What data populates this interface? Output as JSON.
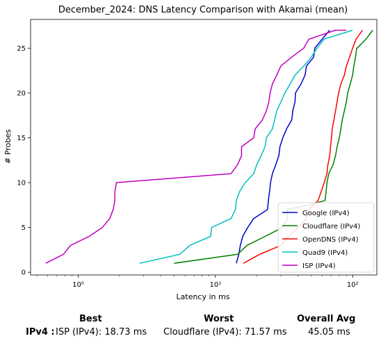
{
  "chart_data": {
    "type": "line",
    "title": "December_2024: DNS Latency Comparison with Akamai (mean)",
    "xlabel": "Latency in ms",
    "ylabel": "# Probes",
    "xscale": "log",
    "xlim": [
      0.45,
      150
    ],
    "ylim": [
      -0.3,
      28.2
    ],
    "xticks": [
      1,
      10,
      100
    ],
    "xtick_labels": [
      "10⁰",
      "10¹",
      "10²"
    ],
    "yticks": [
      0,
      5,
      10,
      15,
      20,
      25
    ],
    "legend_position": "lower-right",
    "series": [
      {
        "name": "Google (IPv4)",
        "color": "#0000cc",
        "points": [
          [
            14.2,
            1
          ],
          [
            14.8,
            2
          ],
          [
            15.2,
            3
          ],
          [
            15.8,
            4
          ],
          [
            17.2,
            5
          ],
          [
            19,
            6
          ],
          [
            24,
            7
          ],
          [
            24.3,
            8
          ],
          [
            24.8,
            9
          ],
          [
            25.2,
            10
          ],
          [
            26,
            11
          ],
          [
            27.5,
            12
          ],
          [
            29,
            13
          ],
          [
            29.5,
            14
          ],
          [
            31,
            15
          ],
          [
            33,
            16
          ],
          [
            36,
            17
          ],
          [
            36.6,
            18
          ],
          [
            38,
            19
          ],
          [
            38.3,
            20
          ],
          [
            42,
            21
          ],
          [
            45,
            22
          ],
          [
            46,
            23
          ],
          [
            52,
            24
          ],
          [
            53,
            25
          ],
          [
            60,
            26
          ],
          [
            68,
            27
          ]
        ]
      },
      {
        "name": "Cloudflare (IPv4)",
        "color": "#008000",
        "points": [
          [
            5,
            1
          ],
          [
            14.5,
            2
          ],
          [
            17,
            3
          ],
          [
            23,
            4
          ],
          [
            31,
            5
          ],
          [
            33.5,
            6
          ],
          [
            33.5,
            7
          ],
          [
            48,
            7.5
          ],
          [
            63,
            8
          ],
          [
            64,
            9
          ],
          [
            65,
            10
          ],
          [
            67,
            11
          ],
          [
            72,
            12
          ],
          [
            75,
            13
          ],
          [
            77,
            14
          ],
          [
            80,
            15
          ],
          [
            82,
            16
          ],
          [
            84,
            17
          ],
          [
            87,
            18
          ],
          [
            90,
            19
          ],
          [
            92,
            20
          ],
          [
            96,
            21
          ],
          [
            100,
            22
          ],
          [
            102,
            23
          ],
          [
            105,
            24
          ],
          [
            107,
            25
          ],
          [
            108,
            25
          ],
          [
            125,
            26
          ],
          [
            140,
            27
          ]
        ]
      },
      {
        "name": "OpenDNS (IPv4)",
        "color": "#ff0000",
        "points": [
          [
            16,
            1
          ],
          [
            21,
            2
          ],
          [
            30,
            3
          ],
          [
            34,
            4
          ],
          [
            40,
            5
          ],
          [
            46,
            6
          ],
          [
            48,
            7
          ],
          [
            56,
            8
          ],
          [
            59,
            9
          ],
          [
            62,
            10
          ],
          [
            65,
            11
          ],
          [
            66,
            12
          ],
          [
            68,
            13
          ],
          [
            69,
            14
          ],
          [
            70,
            15
          ],
          [
            71,
            16
          ],
          [
            73,
            17
          ],
          [
            75,
            18
          ],
          [
            77,
            19
          ],
          [
            79,
            20
          ],
          [
            82,
            21
          ],
          [
            87,
            22
          ],
          [
            90,
            23
          ],
          [
            95,
            24
          ],
          [
            100,
            25
          ],
          [
            106,
            26
          ],
          [
            118,
            27
          ]
        ]
      },
      {
        "name": "Quad9 (IPv4)",
        "color": "#00bfbf",
        "points": [
          [
            2.8,
            1
          ],
          [
            5.5,
            2
          ],
          [
            6.5,
            3
          ],
          [
            9.2,
            4
          ],
          [
            9.4,
            5
          ],
          [
            13,
            6
          ],
          [
            14,
            7
          ],
          [
            14.2,
            8
          ],
          [
            15,
            9
          ],
          [
            16.5,
            10
          ],
          [
            19,
            11
          ],
          [
            20,
            12
          ],
          [
            21.5,
            13
          ],
          [
            23,
            14
          ],
          [
            23.5,
            15
          ],
          [
            26,
            16
          ],
          [
            27,
            17
          ],
          [
            28,
            18
          ],
          [
            30,
            19
          ],
          [
            32,
            20
          ],
          [
            35,
            21
          ],
          [
            38,
            22
          ],
          [
            44,
            23
          ],
          [
            50,
            24
          ],
          [
            55,
            25
          ],
          [
            62,
            26
          ],
          [
            100,
            27
          ]
        ]
      },
      {
        "name": "ISP (IPv4)",
        "color": "#bf00bf",
        "points": [
          [
            0.58,
            1
          ],
          [
            0.78,
            2
          ],
          [
            0.88,
            3
          ],
          [
            1.2,
            4
          ],
          [
            1.5,
            5
          ],
          [
            1.7,
            6
          ],
          [
            1.8,
            7
          ],
          [
            1.85,
            8
          ],
          [
            1.85,
            9
          ],
          [
            1.9,
            10
          ],
          [
            13,
            11
          ],
          [
            14.5,
            12
          ],
          [
            15.5,
            13
          ],
          [
            15.5,
            14
          ],
          [
            19,
            15
          ],
          [
            19.5,
            16
          ],
          [
            22,
            17
          ],
          [
            23.5,
            18
          ],
          [
            24.5,
            19
          ],
          [
            25,
            20
          ],
          [
            26,
            21
          ],
          [
            28,
            22
          ],
          [
            30,
            23
          ],
          [
            36,
            24
          ],
          [
            44,
            25
          ],
          [
            48,
            26
          ],
          [
            75,
            27
          ],
          [
            90,
            27
          ]
        ]
      }
    ]
  },
  "summary": {
    "best_header": "Best",
    "worst_header": "Worst",
    "avg_header": "Overall Avg",
    "row_label": "IPv4 :",
    "best_value": "ISP (IPv4): 18.73 ms",
    "worst_value": "Cloudflare (IPv4): 71.57 ms",
    "avg_value": "45.05 ms"
  }
}
